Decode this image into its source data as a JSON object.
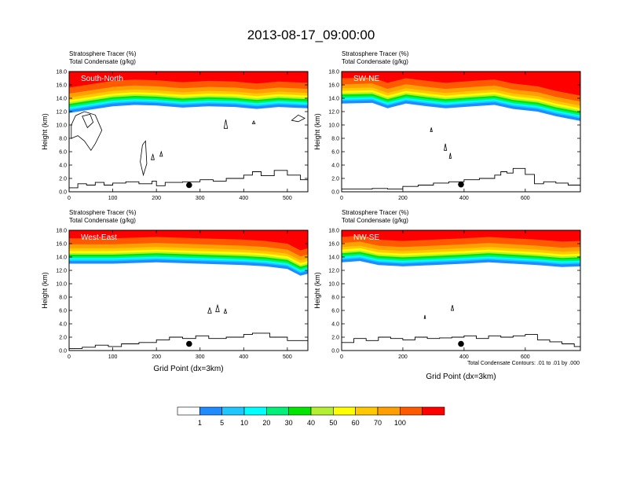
{
  "figure_title": "2013-08-17_09:00:00",
  "footnote": "Total Condensate Contours: .01 to .01 by .000",
  "colorbar": {
    "colors": [
      "#ffffff",
      "#1e8cff",
      "#1ec8ff",
      "#00ffff",
      "#00f07a",
      "#00e600",
      "#b4f032",
      "#ffff00",
      "#ffc800",
      "#ffa000",
      "#ff5a00",
      "#ff0000"
    ],
    "labels": [
      "1",
      "5",
      "10",
      "20",
      "30",
      "40",
      "50",
      "60",
      "70",
      "100"
    ]
  },
  "chart_data": [
    {
      "type": "cross-section",
      "panel": "South-North",
      "title_lines": [
        "Stratosphere Tracer   (%)",
        "Total Condensate   (g/kg)"
      ],
      "ylabel": "Height (km)",
      "xlabel": "",
      "xlim": [
        0,
        547
      ],
      "ylim": [
        0,
        18
      ],
      "xticks": [
        "0",
        "100",
        "200",
        "300",
        "400",
        "500"
      ],
      "yticks": [
        "0.0",
        "2.0",
        "4.0",
        "6.0",
        "8.0",
        "10.0",
        "12.0",
        "14.0",
        "16.0",
        "18.0"
      ],
      "tracer_base_km": [
        [
          0,
          11.8
        ],
        [
          40,
          12.2
        ],
        [
          100,
          12.8
        ],
        [
          150,
          13.0
        ],
        [
          200,
          12.9
        ],
        [
          260,
          12.6
        ],
        [
          320,
          12.8
        ],
        [
          380,
          12.7
        ],
        [
          430,
          12.4
        ],
        [
          480,
          12.7
        ],
        [
          547,
          12.5
        ]
      ],
      "terrain_km": [
        [
          0,
          0.6
        ],
        [
          20,
          1.2
        ],
        [
          40,
          1.0
        ],
        [
          60,
          1.4
        ],
        [
          80,
          1.0
        ],
        [
          100,
          1.3
        ],
        [
          130,
          1.5
        ],
        [
          160,
          1.2
        ],
        [
          190,
          1.6
        ],
        [
          200,
          0.9
        ],
        [
          220,
          1.4
        ],
        [
          260,
          1.5
        ],
        [
          300,
          1.8
        ],
        [
          330,
          1.6
        ],
        [
          360,
          2.0
        ],
        [
          400,
          2.5
        ],
        [
          420,
          3.0
        ],
        [
          440,
          2.4
        ],
        [
          470,
          3.2
        ],
        [
          500,
          2.5
        ],
        [
          530,
          1.8
        ],
        [
          547,
          2.0
        ]
      ],
      "marker": {
        "x": 275,
        "y_km": 1.0
      },
      "cloud_contours_km": [
        [
          [
            5,
            8.0
          ],
          [
            20,
            8.4
          ],
          [
            35,
            7.6
          ],
          [
            50,
            6.2
          ],
          [
            60,
            7.2
          ],
          [
            75,
            9.2
          ],
          [
            60,
            11.5
          ],
          [
            35,
            12.0
          ],
          [
            15,
            11.4
          ],
          [
            5,
            10.0
          ]
        ],
        [
          [
            30,
            11.3
          ],
          [
            42,
            9.6
          ],
          [
            55,
            10.4
          ],
          [
            48,
            11.6
          ]
        ],
        [
          [
            163,
            4.5
          ],
          [
            168,
            7.0
          ],
          [
            175,
            7.6
          ],
          [
            178,
            4.2
          ],
          [
            170,
            2.5
          ]
        ],
        [
          [
            188,
            4.8
          ],
          [
            192,
            5.6
          ],
          [
            195,
            4.8
          ]
        ],
        [
          [
            208,
            5.3
          ],
          [
            211,
            6.0
          ],
          [
            214,
            5.3
          ]
        ],
        [
          [
            355,
            9.5
          ],
          [
            359,
            10.8
          ],
          [
            363,
            9.5
          ]
        ],
        [
          [
            420,
            10.2
          ],
          [
            423,
            10.6
          ],
          [
            426,
            10.2
          ]
        ],
        [
          [
            510,
            10.7
          ],
          [
            525,
            11.5
          ],
          [
            540,
            11.0
          ],
          [
            525,
            10.5
          ]
        ]
      ]
    },
    {
      "type": "cross-section",
      "panel": "SW-NE",
      "title_lines": [
        "Stratosphere Tracer   (%)",
        "Total Condensate   (g/kg)"
      ],
      "ylabel": "Height (km)",
      "xlabel": "",
      "xlim": [
        0,
        780
      ],
      "ylim": [
        0,
        18
      ],
      "xticks": [
        "0",
        "200",
        "400",
        "600"
      ],
      "yticks": [
        "0.0",
        "2.0",
        "4.0",
        "6.0",
        "8.0",
        "10.0",
        "12.0",
        "14.0",
        "16.0",
        "18.0"
      ],
      "tracer_base_km": [
        [
          0,
          13.2
        ],
        [
          100,
          13.3
        ],
        [
          150,
          12.5
        ],
        [
          210,
          13.2
        ],
        [
          280,
          12.8
        ],
        [
          340,
          12.5
        ],
        [
          430,
          12.8
        ],
        [
          500,
          13.0
        ],
        [
          560,
          12.4
        ],
        [
          640,
          12.0
        ],
        [
          700,
          11.3
        ],
        [
          780,
          10.6
        ]
      ],
      "terrain_km": [
        [
          0,
          0.4
        ],
        [
          100,
          0.5
        ],
        [
          150,
          0.4
        ],
        [
          200,
          0.8
        ],
        [
          250,
          1.0
        ],
        [
          300,
          1.3
        ],
        [
          350,
          1.5
        ],
        [
          400,
          1.8
        ],
        [
          450,
          2.0
        ],
        [
          500,
          2.5
        ],
        [
          520,
          3.0
        ],
        [
          540,
          2.8
        ],
        [
          560,
          3.5
        ],
        [
          600,
          2.6
        ],
        [
          630,
          1.2
        ],
        [
          660,
          1.5
        ],
        [
          700,
          1.3
        ],
        [
          740,
          1.0
        ],
        [
          780,
          1.2
        ]
      ],
      "marker": {
        "x": 390,
        "y_km": 1.1
      },
      "cloud_contours_km": [
        [
          [
            290,
            9.0
          ],
          [
            293,
            9.6
          ],
          [
            296,
            9.0
          ]
        ],
        [
          [
            335,
            6.2
          ],
          [
            339,
            7.2
          ],
          [
            343,
            6.2
          ]
        ],
        [
          [
            352,
            5.0
          ],
          [
            355,
            5.8
          ],
          [
            358,
            5.0
          ]
        ]
      ]
    },
    {
      "type": "cross-section",
      "panel": "West-East",
      "title_lines": [
        "Stratosphere Tracer   (%)",
        "Total Condensate   (g/kg)"
      ],
      "ylabel": "Height (km)",
      "xlabel": "Grid Point (dx=3km)",
      "xlim": [
        0,
        547
      ],
      "ylim": [
        0,
        18
      ],
      "xticks": [
        "0",
        "100",
        "200",
        "300",
        "400",
        "500"
      ],
      "yticks": [
        "0.0",
        "2.0",
        "4.0",
        "6.0",
        "8.0",
        "10.0",
        "12.0",
        "14.0",
        "16.0",
        "18.0"
      ],
      "tracer_base_km": [
        [
          0,
          13.0
        ],
        [
          100,
          13.0
        ],
        [
          200,
          13.2
        ],
        [
          300,
          13.0
        ],
        [
          400,
          12.8
        ],
        [
          450,
          12.6
        ],
        [
          500,
          12.2
        ],
        [
          530,
          11.2
        ],
        [
          547,
          11.5
        ]
      ],
      "terrain_km": [
        [
          0,
          0.3
        ],
        [
          30,
          0.5
        ],
        [
          60,
          0.8
        ],
        [
          90,
          0.6
        ],
        [
          120,
          1.0
        ],
        [
          160,
          1.2
        ],
        [
          200,
          1.6
        ],
        [
          230,
          2.0
        ],
        [
          260,
          1.8
        ],
        [
          290,
          2.2
        ],
        [
          320,
          1.8
        ],
        [
          360,
          2.0
        ],
        [
          400,
          2.4
        ],
        [
          420,
          2.6
        ],
        [
          460,
          2.0
        ],
        [
          500,
          1.5
        ],
        [
          547,
          1.2
        ]
      ],
      "marker": {
        "x": 275,
        "y_km": 1.0
      },
      "cloud_contours_km": [
        [
          [
            318,
            5.6
          ],
          [
            322,
            6.4
          ],
          [
            326,
            5.6
          ]
        ],
        [
          [
            336,
            5.8
          ],
          [
            340,
            6.8
          ],
          [
            344,
            5.8
          ]
        ],
        [
          [
            355,
            5.6
          ],
          [
            358,
            6.2
          ],
          [
            361,
            5.6
          ]
        ]
      ]
    },
    {
      "type": "cross-section",
      "panel": "NW-SE",
      "title_lines": [
        "Stratosphere Tracer   (%)",
        "Total Condensate   (g/kg)"
      ],
      "ylabel": "Height (km)",
      "xlabel": "Grid Point (dx=3km)",
      "xlim": [
        0,
        780
      ],
      "ylim": [
        0,
        18
      ],
      "xticks": [
        "0",
        "200",
        "400",
        "600"
      ],
      "yticks": [
        "0.0",
        "2.0",
        "4.0",
        "6.0",
        "8.0",
        "10.0",
        "12.0",
        "14.0",
        "16.0",
        "18.0"
      ],
      "tracer_base_km": [
        [
          0,
          13.2
        ],
        [
          60,
          13.4
        ],
        [
          120,
          12.8
        ],
        [
          200,
          12.6
        ],
        [
          300,
          12.8
        ],
        [
          400,
          13.0
        ],
        [
          480,
          13.2
        ],
        [
          560,
          13.0
        ],
        [
          640,
          12.8
        ],
        [
          720,
          12.5
        ],
        [
          780,
          12.6
        ]
      ],
      "terrain_km": [
        [
          0,
          1.2
        ],
        [
          40,
          1.8
        ],
        [
          80,
          1.5
        ],
        [
          120,
          2.0
        ],
        [
          160,
          1.8
        ],
        [
          200,
          1.6
        ],
        [
          240,
          2.0
        ],
        [
          280,
          1.8
        ],
        [
          320,
          1.9
        ],
        [
          360,
          2.0
        ],
        [
          400,
          2.2
        ],
        [
          440,
          1.8
        ],
        [
          480,
          2.2
        ],
        [
          520,
          2.0
        ],
        [
          560,
          2.2
        ],
        [
          600,
          2.4
        ],
        [
          640,
          1.6
        ],
        [
          680,
          1.3
        ],
        [
          720,
          1.0
        ],
        [
          760,
          0.6
        ],
        [
          780,
          0.4
        ]
      ],
      "marker": {
        "x": 390,
        "y_km": 1.0
      },
      "cloud_contours_km": [
        [
          [
            270,
            4.8
          ],
          [
            272,
            5.3
          ],
          [
            274,
            4.8
          ]
        ],
        [
          [
            358,
            6.0
          ],
          [
            362,
            6.8
          ],
          [
            366,
            6.0
          ]
        ]
      ]
    }
  ]
}
